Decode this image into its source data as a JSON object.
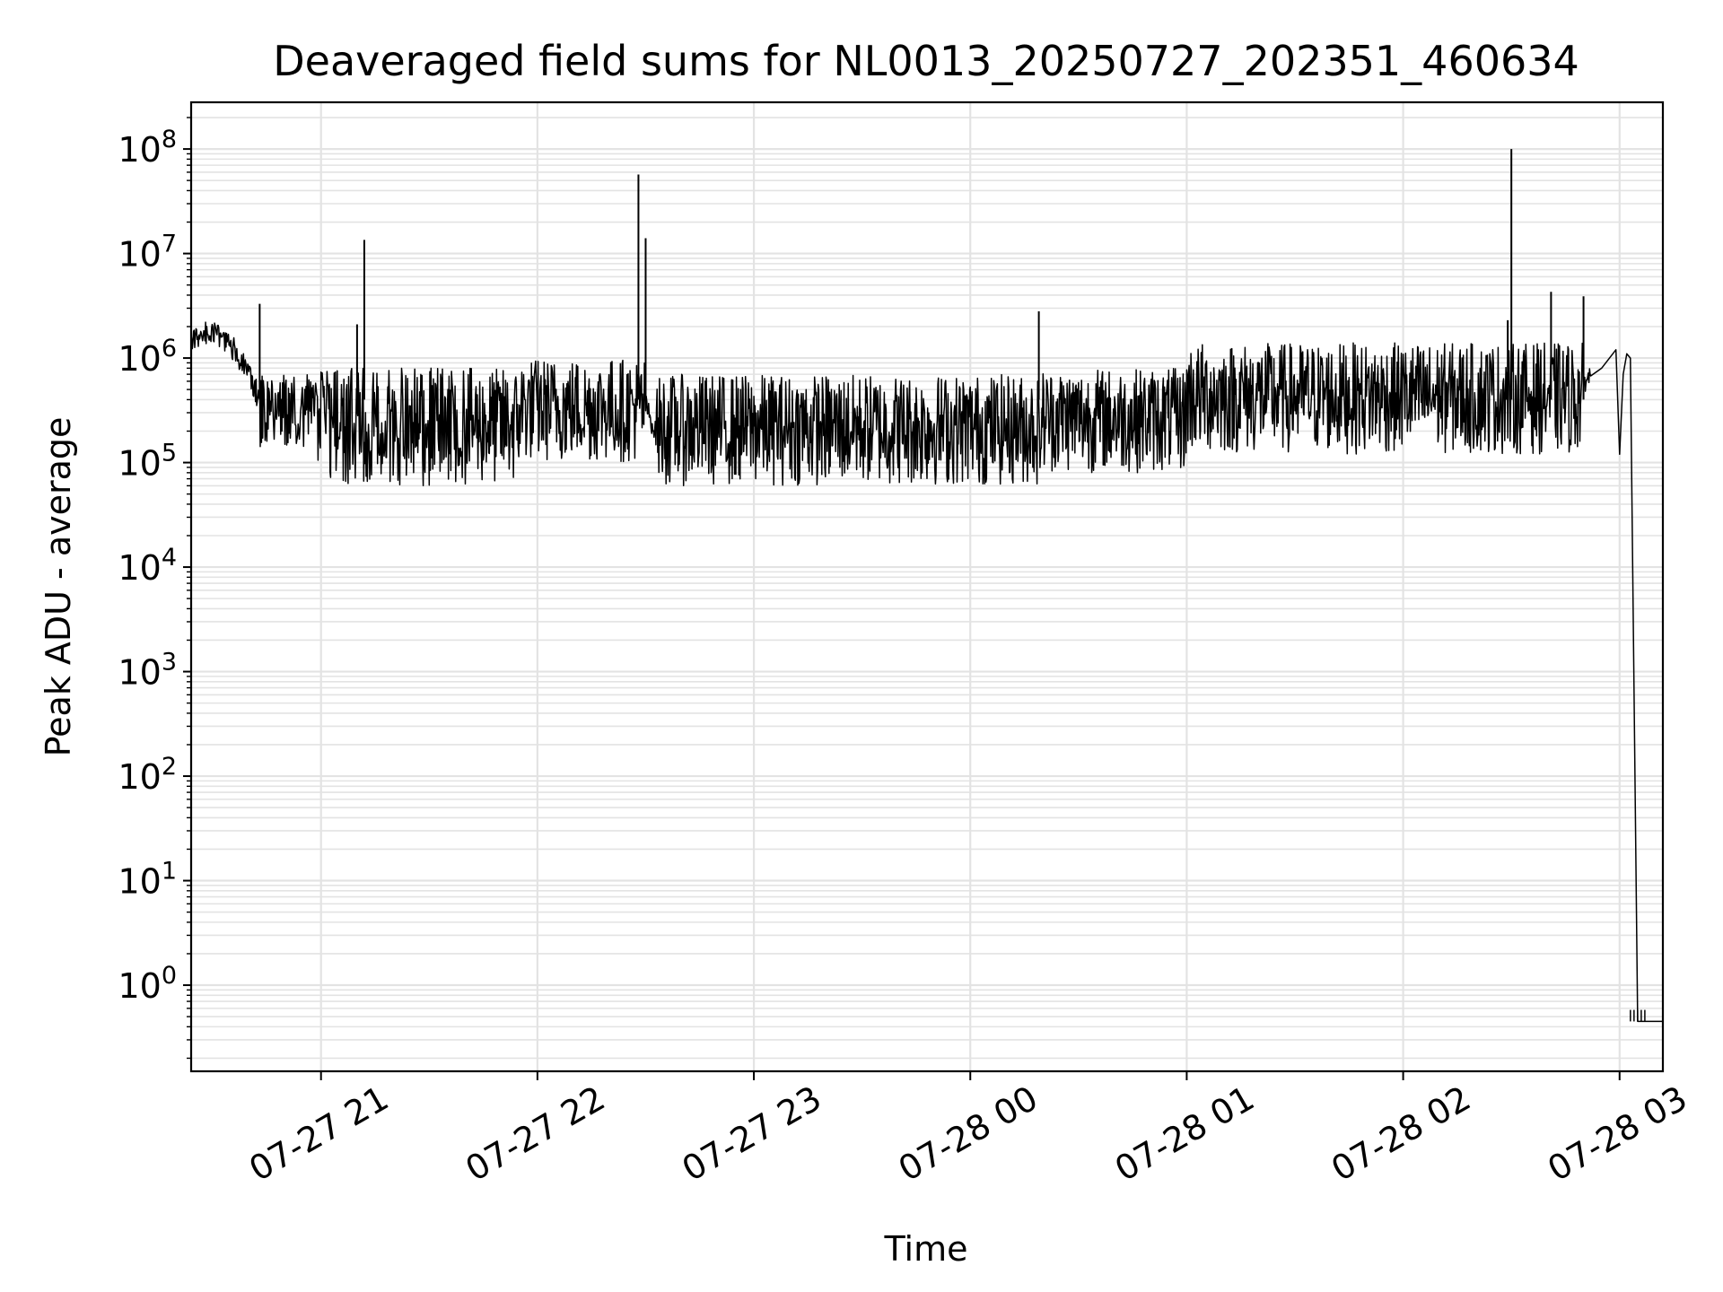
{
  "chart_data": {
    "type": "line",
    "title": "Deaveraged field sums for NL0013_20250727_202351_460634",
    "xlabel": "Time",
    "ylabel": "Peak ADU - average",
    "x_scale": "time",
    "y_scale": "log",
    "grid": true,
    "line_color": "#000000",
    "xlim": [
      "2025-07-27 20:24",
      "2025-07-28 03:12"
    ],
    "ylim": [
      0.15,
      280000000.0
    ],
    "x_tick_labels": [
      "07-27 21",
      "07-27 22",
      "07-27 23",
      "07-28 00",
      "07-28 01",
      "07-28 02",
      "07-28 03"
    ],
    "y_tick_labels": [
      {
        "base": "10",
        "exp": "8"
      },
      {
        "base": "10",
        "exp": "7"
      },
      {
        "base": "10",
        "exp": "6"
      },
      {
        "base": "10",
        "exp": "5"
      },
      {
        "base": "10",
        "exp": "4"
      },
      {
        "base": "10",
        "exp": "3"
      },
      {
        "base": "10",
        "exp": "2"
      },
      {
        "base": "10",
        "exp": "1"
      },
      {
        "base": "10",
        "exp": "0"
      }
    ],
    "series": [
      {
        "x": [
          "2025-07-27 20:24",
          "2025-07-27 20:27",
          "2025-07-27 20:30",
          "2025-07-27 20:33",
          "2025-07-27 20:36",
          "2025-07-27 20:40",
          "2025-07-27 20:42",
          "2025-07-27 20:44",
          "2025-07-27 20:47",
          "2025-07-27 20:50",
          "2025-07-27 20:55",
          "2025-07-27 21:00",
          "2025-07-27 21:05",
          "2025-07-27 21:10",
          "2025-07-27 21:15",
          "2025-07-27 21:20",
          "2025-07-27 21:30",
          "2025-07-27 21:40",
          "2025-07-27 21:50",
          "2025-07-27 21:55",
          "2025-07-27 22:05",
          "2025-07-27 22:15",
          "2025-07-27 22:25",
          "2025-07-27 22:29",
          "2025-07-27 22:33",
          "2025-07-27 22:40",
          "2025-07-27 22:50",
          "2025-07-27 23:00",
          "2025-07-27 23:15",
          "2025-07-27 23:30",
          "2025-07-27 23:45",
          "2025-07-28 00:00",
          "2025-07-28 00:15",
          "2025-07-28 00:20",
          "2025-07-28 00:30",
          "2025-07-28 00:45",
          "2025-07-28 01:00",
          "2025-07-28 01:15",
          "2025-07-28 01:30",
          "2025-07-28 01:45",
          "2025-07-28 02:00",
          "2025-07-28 02:10",
          "2025-07-28 02:20",
          "2025-07-28 02:30",
          "2025-07-28 02:40",
          "2025-07-28 02:50",
          "2025-07-28 02:55",
          "2025-07-28 02:59",
          "2025-07-28 03:00",
          "2025-07-28 03:01",
          "2025-07-28 03:02",
          "2025-07-28 03:03",
          "2025-07-28 03:05",
          "2025-07-28 03:06",
          "2025-07-28 03:12"
        ],
        "y": [
          1400000,
          1700000,
          1800000,
          1500000,
          1200000,
          700000,
          450000,
          480000,
          420000,
          380000,
          320000,
          280000,
          220000,
          250000,
          180000,
          200000,
          210000,
          190000,
          170000,
          350000,
          500000,
          420000,
          350000,
          450000,
          180000,
          200000,
          160000,
          170000,
          150000,
          160000,
          180000,
          170000,
          160000,
          600000,
          300000,
          280000,
          350000,
          320000,
          400000,
          420000,
          380000,
          350000,
          330000,
          300000,
          500000,
          600000,
          800000,
          1200000,
          120000,
          700000,
          1100000,
          1000000,
          0.45,
          0.45,
          0.45
        ]
      }
    ],
    "noise_band": [
      {
        "start": "2025-07-27 20:42",
        "end": "2025-07-27 20:59",
        "low": 140000,
        "high": 700000
      },
      {
        "start": "2025-07-27 20:59",
        "end": "2025-07-27 21:55",
        "low": 60000,
        "high": 800000
      },
      {
        "start": "2025-07-27 21:55",
        "end": "2025-07-27 22:30",
        "low": 100000,
        "high": 1000000
      },
      {
        "start": "2025-07-27 22:33",
        "end": "2025-07-28 00:20",
        "low": 60000,
        "high": 700000
      },
      {
        "start": "2025-07-28 00:20",
        "end": "2025-07-28 01:00",
        "low": 80000,
        "high": 800000
      },
      {
        "start": "2025-07-28 01:00",
        "end": "2025-07-28 02:50",
        "low": 120000,
        "high": 1400000
      }
    ],
    "spikes": [
      {
        "x": "2025-07-27 20:43",
        "y": 3300000
      },
      {
        "x": "2025-07-27 21:10",
        "y": 2100000
      },
      {
        "x": "2025-07-27 21:12",
        "y": 13500000
      },
      {
        "x": "2025-07-27 22:28",
        "y": 57000000
      },
      {
        "x": "2025-07-27 22:30",
        "y": 14000000
      },
      {
        "x": "2025-07-28 00:19",
        "y": 2800000
      },
      {
        "x": "2025-07-28 02:30",
        "y": 100000000
      },
      {
        "x": "2025-07-28 02:41",
        "y": 4300000
      },
      {
        "x": "2025-07-28 02:50",
        "y": 3900000
      },
      {
        "x": "2025-07-28 02:29",
        "y": 2300000
      }
    ]
  }
}
